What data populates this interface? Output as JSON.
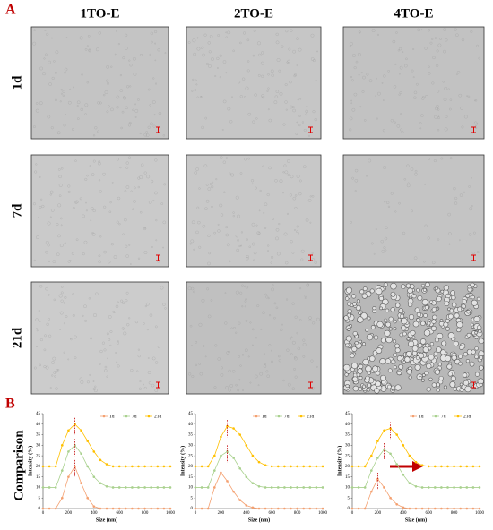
{
  "figure": {
    "panel_a_label": "A",
    "panel_b_label": "B",
    "columns": [
      "1TO-E",
      "2TO-E",
      "4TO-E"
    ],
    "rows": [
      "1d",
      "7d",
      "21d"
    ],
    "comparison_label": "Comparison"
  },
  "chart_data": [
    {
      "type": "line",
      "xlabel": "Size (nm)",
      "ylabel": "Intensity (%)",
      "x": [
        0,
        50,
        100,
        150,
        200,
        250,
        300,
        350,
        400,
        450,
        500,
        550,
        600,
        650,
        700,
        750,
        800,
        850,
        900,
        950,
        1000
      ],
      "xlim": [
        0,
        1000
      ],
      "xticks": [
        0,
        200,
        400,
        600,
        800,
        1000
      ],
      "ylim": [
        0,
        45
      ],
      "yticks": [
        0,
        5,
        10,
        15,
        20,
        25,
        30,
        35,
        40,
        45
      ],
      "legend": "top-right",
      "series": [
        {
          "name": "1d",
          "color": "#f4a070",
          "values": [
            0,
            0,
            0,
            5,
            15,
            20,
            12,
            5,
            1,
            0,
            0,
            0,
            0,
            0,
            0,
            0,
            0,
            0,
            0,
            0,
            0
          ]
        },
        {
          "name": "7d",
          "color": "#a9d18e",
          "values": [
            10,
            10,
            10,
            18,
            27,
            30,
            26,
            20,
            15,
            12,
            10.5,
            10,
            10,
            10,
            10,
            10,
            10,
            10,
            10,
            10,
            10
          ]
        },
        {
          "name": "21d",
          "color": "#ffc000",
          "values": [
            20,
            20,
            20,
            30,
            37,
            40,
            37,
            32,
            27,
            23,
            21,
            20,
            20,
            20,
            20,
            20,
            20,
            20,
            20,
            20,
            20
          ]
        }
      ]
    },
    {
      "type": "line",
      "xlabel": "Size (nm)",
      "ylabel": "Intensity (%)",
      "x": [
        0,
        50,
        100,
        150,
        200,
        250,
        300,
        350,
        400,
        450,
        500,
        550,
        600,
        650,
        700,
        750,
        800,
        850,
        900,
        950,
        1000
      ],
      "xlim": [
        0,
        1000
      ],
      "xticks": [
        0,
        200,
        400,
        600,
        800,
        1000
      ],
      "ylim": [
        0,
        45
      ],
      "yticks": [
        0,
        5,
        10,
        15,
        20,
        25,
        30,
        35,
        40,
        45
      ],
      "legend": "top-right",
      "series": [
        {
          "name": "1d",
          "color": "#f4a070",
          "values": [
            0,
            0,
            0,
            10,
            17,
            13,
            8,
            4,
            1.5,
            0.5,
            0,
            0,
            0,
            0,
            0,
            0,
            0,
            0,
            0,
            0,
            0
          ]
        },
        {
          "name": "7d",
          "color": "#a9d18e",
          "values": [
            10,
            10,
            10,
            18,
            25,
            27,
            24,
            19,
            15,
            12,
            10.5,
            10,
            10,
            10,
            10,
            10,
            10,
            10,
            10,
            10,
            10
          ]
        },
        {
          "name": "21d",
          "color": "#ffc000",
          "values": [
            20,
            20,
            20,
            25,
            34,
            39,
            38,
            35,
            30,
            25,
            22,
            20.5,
            20,
            20,
            20,
            20,
            20,
            20,
            20,
            20,
            20
          ]
        }
      ]
    },
    {
      "type": "line",
      "xlabel": "Size (nm)",
      "ylabel": "Intensity (%)",
      "x": [
        0,
        50,
        100,
        150,
        200,
        250,
        300,
        350,
        400,
        450,
        500,
        550,
        600,
        650,
        700,
        750,
        800,
        850,
        900,
        950,
        1000
      ],
      "xlim": [
        0,
        1000
      ],
      "xticks": [
        0,
        200,
        400,
        600,
        800,
        1000
      ],
      "ylim": [
        0,
        45
      ],
      "yticks": [
        0,
        5,
        10,
        15,
        20,
        25,
        30,
        35,
        40,
        45
      ],
      "legend": "top-right",
      "series": [
        {
          "name": "1d",
          "color": "#f4a070",
          "values": [
            0,
            0,
            0,
            8,
            14,
            10,
            5,
            2,
            0.5,
            0,
            0,
            0,
            0,
            0,
            0,
            0,
            0,
            0,
            0,
            0,
            0
          ]
        },
        {
          "name": "7d",
          "color": "#a9d18e",
          "values": [
            10,
            10,
            10,
            18,
            24,
            28,
            26,
            21,
            16,
            12,
            10.5,
            10,
            10,
            10,
            10,
            10,
            10,
            10,
            10,
            10,
            10
          ]
        },
        {
          "name": "21d",
          "color": "#ffc000",
          "values": [
            20,
            20,
            20,
            25,
            32,
            37,
            38,
            35,
            30,
            25,
            22,
            20.5,
            20,
            20,
            20,
            20,
            20,
            20,
            20,
            20,
            20
          ]
        }
      ]
    }
  ]
}
